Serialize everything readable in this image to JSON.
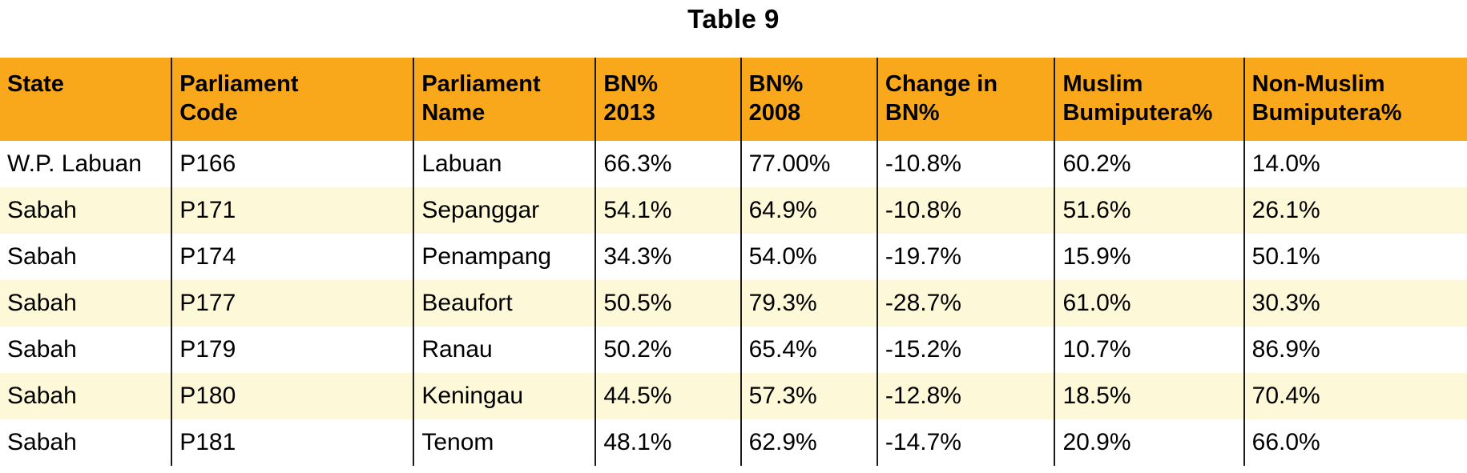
{
  "page": {
    "title": "Table 9"
  },
  "colors": {
    "header_bg": "#F9A81B",
    "row_alt_bg": "#FCF8D8",
    "border": "#1A1A1A",
    "text": "#000000"
  },
  "table": {
    "headers": [
      {
        "id": "state",
        "line1": "State",
        "line2": ""
      },
      {
        "id": "parliament-code",
        "line1": "Parliament",
        "line2": "Code"
      },
      {
        "id": "parliament-name",
        "line1": "Parliament",
        "line2": "Name"
      },
      {
        "id": "bn-2013",
        "line1": "BN%",
        "line2": "2013"
      },
      {
        "id": "bn-2008",
        "line1": "BN%",
        "line2": "2008"
      },
      {
        "id": "change-in-bn",
        "line1": "Change in",
        "line2": "BN%"
      },
      {
        "id": "muslim-bumiputera",
        "line1": "Muslim",
        "line2": "Bumiputera%"
      },
      {
        "id": "non-muslim-bumiputera",
        "line1": "Non-Muslim",
        "line2": "Bumiputera%"
      }
    ],
    "rows": [
      [
        "W.P. Labuan",
        "P166",
        "Labuan",
        "66.3%",
        "77.00%",
        "-10.8%",
        "60.2%",
        "14.0%"
      ],
      [
        "Sabah",
        "P171",
        "Sepanggar",
        "54.1%",
        "64.9%",
        "-10.8%",
        "51.6%",
        "26.1%"
      ],
      [
        "Sabah",
        "P174",
        "Penampang",
        "34.3%",
        "54.0%",
        "-19.7%",
        "15.9%",
        "50.1%"
      ],
      [
        "Sabah",
        "P177",
        "Beaufort",
        "50.5%",
        "79.3%",
        "-28.7%",
        "61.0%",
        "30.3%"
      ],
      [
        "Sabah",
        "P179",
        "Ranau",
        "50.2%",
        "65.4%",
        "-15.2%",
        "10.7%",
        "86.9%"
      ],
      [
        "Sabah",
        "P180",
        "Keningau",
        "44.5%",
        "57.3%",
        "-12.8%",
        "18.5%",
        "70.4%"
      ],
      [
        "Sabah",
        "P181",
        "Tenom",
        "48.1%",
        "62.9%",
        "-14.7%",
        "20.9%",
        "66.0%"
      ]
    ]
  }
}
